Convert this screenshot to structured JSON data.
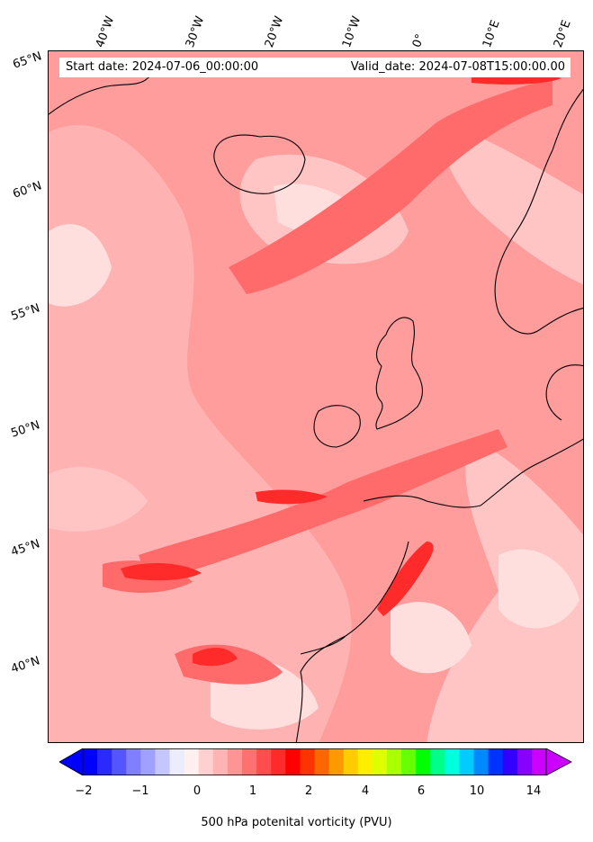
{
  "header": {
    "start_date": "Start date: 2024-07-06_00:00:00",
    "valid_date": "Valid_date: 2024-07-08T15:00:00.00"
  },
  "longitude_labels": [
    "40°W",
    "30°W",
    "20°W",
    "10°W",
    "0°",
    "10°E",
    "20°E"
  ],
  "latitude_labels": [
    "65°N",
    "60°N",
    "55°N",
    "50°N",
    "45°N",
    "40°N"
  ],
  "colorbar": {
    "ticks": [
      "−2",
      "−1",
      "0",
      "1",
      "2",
      "4",
      "6",
      "10",
      "14"
    ],
    "label": "500 hPa potenital vorticity (PVU)",
    "colors": [
      "#0000ff",
      "#2a2aff",
      "#5555ff",
      "#7f7fff",
      "#a0a0ff",
      "#c6c6ff",
      "#ececff",
      "#fff0f0",
      "#ffd0d0",
      "#ffb4b4",
      "#ff9494",
      "#ff7070",
      "#ff4c4c",
      "#ff2a2a",
      "#ff0000",
      "#ff3300",
      "#ff6600",
      "#ff9900",
      "#ffcc00",
      "#ffee00",
      "#ddff00",
      "#aaff00",
      "#66ff00",
      "#00ff00",
      "#00ff88",
      "#00ffdd",
      "#00ccff",
      "#0088ff",
      "#0033ff",
      "#3300ff",
      "#8800ff",
      "#cc00ff"
    ],
    "extend_low_color": "#0000ff",
    "extend_high_color": "#cc00ff"
  },
  "map": {
    "background_color": "#ff9c9c",
    "colors": {
      "pale": "#ffd6d6",
      "light": "#ffbcbc",
      "mid": "#ff8a8a",
      "strong": "#ff5a5a",
      "intense": "#ff2020",
      "coast": "#000000"
    }
  }
}
